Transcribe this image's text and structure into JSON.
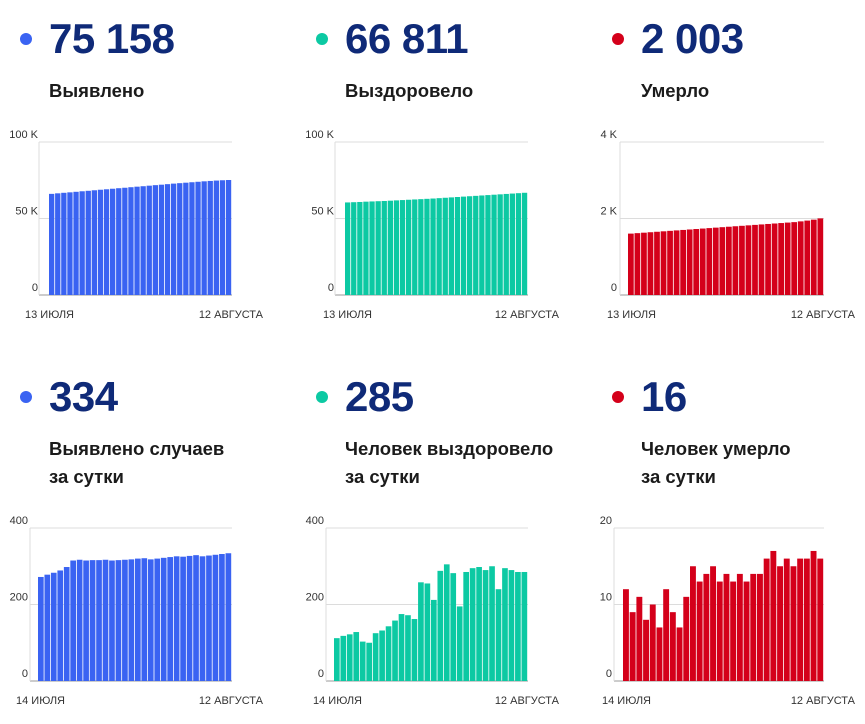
{
  "colors": {
    "blue": "#3a63f2",
    "green": "#0cc9a3",
    "red": "#d4001a",
    "number": "#0f2a78"
  },
  "panels": [
    {
      "value": "75 158",
      "label_lines": [
        "Выявлено"
      ],
      "color": "#3a63f2",
      "chart_data": {
        "type": "bar",
        "x_start_label": "13 ИЮЛЯ",
        "x_end_label": "12 АВГУСТА",
        "yticks": [
          "0",
          "50 K",
          "100 K"
        ],
        "ylim": [
          0,
          100000
        ],
        "values": [
          66100,
          66450,
          66800,
          67100,
          67450,
          67800,
          68100,
          68450,
          68800,
          69100,
          69450,
          69800,
          70100,
          70450,
          70800,
          71100,
          71450,
          71800,
          72100,
          72450,
          72800,
          73100,
          73400,
          73700,
          74000,
          74300,
          74550,
          74800,
          75000,
          75158
        ]
      }
    },
    {
      "value": "66 811",
      "label_lines": [
        "Выздоровело"
      ],
      "color": "#0cc9a3",
      "chart_data": {
        "type": "bar",
        "x_start_label": "13 ИЮЛЯ",
        "x_end_label": "12 АВГУСТА",
        "yticks": [
          "0",
          "50 K",
          "100 K"
        ],
        "ylim": [
          0,
          100000
        ],
        "values": [
          60500,
          60650,
          60800,
          61000,
          61150,
          61300,
          61450,
          61650,
          61850,
          62050,
          62250,
          62450,
          62650,
          62850,
          63050,
          63300,
          63550,
          63800,
          64050,
          64300,
          64550,
          64800,
          65050,
          65300,
          65550,
          65800,
          66050,
          66300,
          66550,
          66811
        ]
      }
    },
    {
      "value": "2 003",
      "label_lines": [
        "Умерло"
      ],
      "color": "#d4001a",
      "chart_data": {
        "type": "bar",
        "x_start_label": "13 ИЮЛЯ",
        "x_end_label": "12 АВГУСТА",
        "yticks": [
          "0",
          "2 K",
          "4 K"
        ],
        "ylim": [
          0,
          4000
        ],
        "values": [
          1605,
          1617,
          1629,
          1641,
          1653,
          1665,
          1677,
          1689,
          1701,
          1713,
          1725,
          1737,
          1749,
          1761,
          1773,
          1785,
          1797,
          1809,
          1821,
          1833,
          1845,
          1857,
          1869,
          1881,
          1893,
          1905,
          1925,
          1945,
          1970,
          2003
        ]
      }
    },
    {
      "value": "334",
      "label_lines": [
        "Выявлено случаев",
        "за сутки"
      ],
      "color": "#3a63f2",
      "chart_data": {
        "type": "bar",
        "x_start_label": "14 ИЮЛЯ",
        "x_end_label": "12 АВГУСТА",
        "yticks": [
          "0",
          "200",
          "400"
        ],
        "ylim": [
          0,
          400
        ],
        "values": [
          272,
          278,
          283,
          289,
          298,
          315,
          317,
          315,
          316,
          316,
          317,
          315,
          316,
          317,
          318,
          320,
          321,
          318,
          320,
          322,
          324,
          326,
          325,
          327,
          329,
          326,
          328,
          330,
          332,
          334
        ]
      }
    },
    {
      "value": "285",
      "label_lines": [
        "Человек выздоровело",
        "за сутки"
      ],
      "color": "#0cc9a3",
      "chart_data": {
        "type": "bar",
        "x_start_label": "14 ИЮЛЯ",
        "x_end_label": "12 АВГУСТА",
        "yticks": [
          "0",
          "200",
          "400"
        ],
        "ylim": [
          0,
          400
        ],
        "values": [
          112,
          118,
          122,
          128,
          103,
          100,
          125,
          132,
          143,
          158,
          175,
          172,
          162,
          258,
          255,
          212,
          288,
          305,
          282,
          195,
          285,
          295,
          298,
          290,
          300,
          240,
          295,
          290,
          285,
          285
        ]
      }
    },
    {
      "value": "16",
      "label_lines": [
        "Человек умерло",
        "за сутки"
      ],
      "color": "#d4001a",
      "chart_data": {
        "type": "bar",
        "x_start_label": "14 ИЮЛЯ",
        "x_end_label": "12 АВГУСТА",
        "yticks": [
          "0",
          "10",
          "20"
        ],
        "ylim": [
          0,
          20
        ],
        "values": [
          12,
          9,
          11,
          8,
          10,
          7,
          12,
          9,
          7,
          11,
          15,
          13,
          14,
          15,
          13,
          14,
          13,
          14,
          13,
          14,
          14,
          16,
          17,
          15,
          16,
          15,
          16,
          16,
          17,
          16
        ]
      }
    }
  ]
}
